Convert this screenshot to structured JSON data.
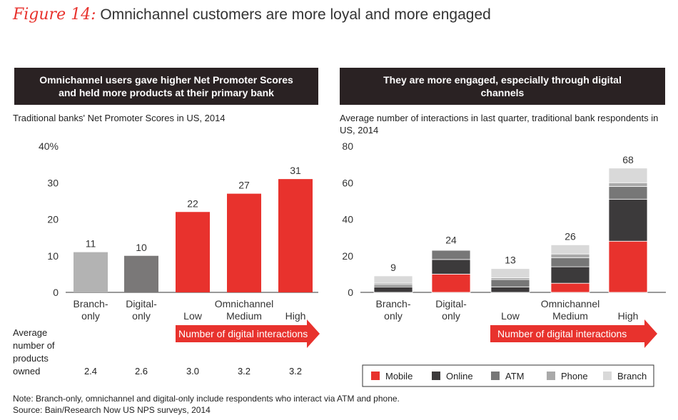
{
  "figure": {
    "number": "Figure 14:",
    "title": "Omnichannel customers are more loyal and more engaged"
  },
  "left_panel": {
    "header": "Omnichannel users gave higher Net Promoter Scores and held more products at their primary bank",
    "subtitle": "Traditional banks' Net Promoter Scores in US, 2014",
    "products_label": [
      "Average",
      "number of",
      "products",
      "owned"
    ],
    "products_values": [
      "2.4",
      "2.6",
      "3.0",
      "3.2",
      "3.2"
    ]
  },
  "right_panel": {
    "header": "They are more engaged, especially through digital channels",
    "subtitle": "Average number of interactions in last quarter, traditional bank respondents in US, 2014"
  },
  "shared": {
    "omnichannel_label": "Omnichannel",
    "arrow_label": "Number of digital interactions"
  },
  "colors": {
    "red": "#e8322d",
    "branch_only": "#b3b3b3",
    "digital_only": "#7a7878",
    "mobile": "#e8322d",
    "online": "#3c3a3b",
    "atm": "#777777",
    "phone": "#a9a9a9",
    "branch": "#d9d9d9"
  },
  "chart_data": [
    {
      "type": "bar",
      "title": "Traditional banks' Net Promoter Scores in US, 2014",
      "categories": [
        "Branch-only",
        "Digital-only",
        "Low",
        "Medium",
        "High"
      ],
      "category_lines": [
        [
          "Branch-",
          "only"
        ],
        [
          "Digital-",
          "only"
        ],
        [
          "Low"
        ],
        [
          "Medium"
        ],
        [
          "High"
        ]
      ],
      "values": [
        11,
        10,
        22,
        27,
        31
      ],
      "value_labels": [
        "11",
        "10",
        "22",
        "27",
        "31"
      ],
      "ylim": [
        0,
        40
      ],
      "yticks": [
        0,
        10,
        20,
        30,
        40
      ],
      "ytick_labels": [
        "0",
        "10",
        "20",
        "30",
        "40%"
      ],
      "ylabel": "",
      "xlabel": "Number of digital interactions"
    },
    {
      "type": "bar",
      "stacked": true,
      "title": "Average number of interactions in last quarter, traditional bank respondents in US, 2014",
      "categories": [
        "Branch-only",
        "Digital-only",
        "Low",
        "Medium",
        "High"
      ],
      "category_lines": [
        [
          "Branch-",
          "only"
        ],
        [
          "Digital-",
          "only"
        ],
        [
          "Low"
        ],
        [
          "Medium"
        ],
        [
          "High"
        ]
      ],
      "totals": [
        9,
        24,
        13,
        26,
        68
      ],
      "total_labels": [
        "9",
        "24",
        "13",
        "26",
        "68"
      ],
      "series": [
        {
          "name": "Mobile",
          "values": [
            0,
            10,
            0,
            5,
            28
          ]
        },
        {
          "name": "Online",
          "values": [
            3,
            8,
            3,
            9,
            23
          ]
        },
        {
          "name": "ATM",
          "values": [
            1,
            5,
            4,
            5,
            7
          ]
        },
        {
          "name": "Phone",
          "values": [
            1,
            0,
            1,
            2,
            2
          ]
        },
        {
          "name": "Branch",
          "values": [
            4,
            0,
            5,
            5,
            8
          ]
        }
      ],
      "ylim": [
        0,
        80
      ],
      "yticks": [
        0,
        20,
        40,
        60,
        80
      ],
      "ytick_labels": [
        "0",
        "20",
        "40",
        "60",
        "80"
      ],
      "legend": "bottom",
      "xlabel": "Number of digital interactions"
    }
  ],
  "notes": {
    "note": "Note: Branch-only, omnichannel and digital-only include respondents who interact via ATM and phone.",
    "source": "Source: Bain/Research Now US NPS surveys, 2014"
  }
}
